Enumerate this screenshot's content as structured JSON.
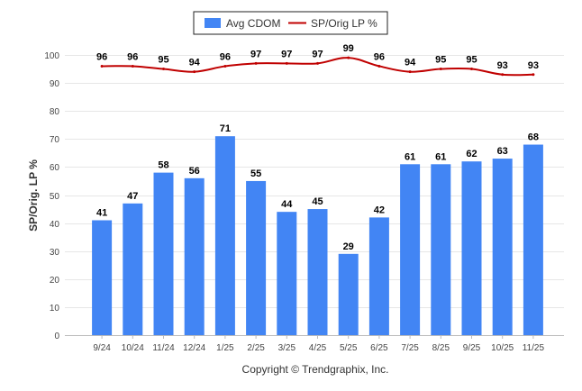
{
  "chart_data": {
    "type": "bar",
    "categories": [
      "9/24",
      "10/24",
      "11/24",
      "12/24",
      "1/25",
      "2/25",
      "3/25",
      "4/25",
      "5/25",
      "6/25",
      "7/25",
      "8/25",
      "9/25",
      "10/25",
      "11/25"
    ],
    "series": [
      {
        "name": "Avg CDOM",
        "type": "bar",
        "color": "#4285f4",
        "values": [
          41,
          47,
          58,
          56,
          71,
          55,
          44,
          45,
          29,
          42,
          61,
          61,
          62,
          63,
          68
        ]
      },
      {
        "name": "SP/Orig LP %",
        "type": "line",
        "color": "#c00000",
        "values": [
          96,
          96,
          95,
          94,
          96,
          97,
          97,
          97,
          99,
          96,
          94,
          95,
          95,
          93,
          93
        ]
      }
    ],
    "ylabel": "SP/Orig. LP %",
    "yticks": [
      0,
      10,
      20,
      30,
      40,
      50,
      60,
      70,
      80,
      90,
      100
    ],
    "ylim": [
      0,
      100
    ],
    "grid": true,
    "legend_position": "top-center"
  },
  "legend": {
    "bar_label": "Avg CDOM",
    "line_label": "SP/Orig LP %"
  },
  "axis": {
    "ylabel": "SP/Orig. LP %"
  },
  "footer": {
    "copyright": "Copyright © Trendgraphix, Inc."
  }
}
